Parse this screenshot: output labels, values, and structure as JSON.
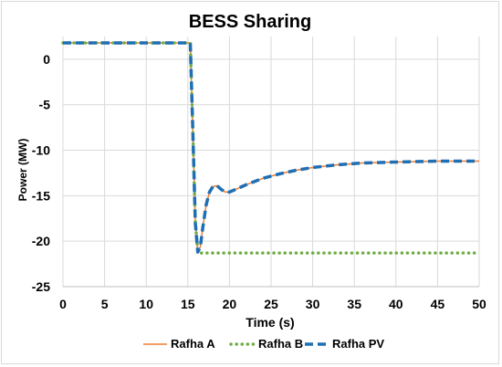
{
  "chart_data": {
    "type": "line",
    "title": "BESS Sharing",
    "xlabel": "Time (s)",
    "ylabel": "Power (MW)",
    "xlim": [
      0,
      50
    ],
    "ylim": [
      -25,
      2.5
    ],
    "xticks": [
      0,
      5,
      10,
      15,
      20,
      25,
      30,
      35,
      40,
      45,
      50
    ],
    "yticks": [
      0,
      -5,
      -10,
      -15,
      -20,
      -25
    ],
    "grid": true,
    "legend_position": "bottom",
    "series": [
      {
        "name": "Rafha A",
        "color": "#ed7d31",
        "style": "solid",
        "x": [
          0,
          15.3,
          15.6,
          15.9,
          16.2,
          16.5,
          16.8,
          17.2,
          17.6,
          18.0,
          18.5,
          19.0,
          19.5,
          20.0,
          21,
          22,
          24,
          26,
          28,
          30,
          33,
          36,
          40,
          45,
          50
        ],
        "y": [
          1.8,
          1.8,
          -8,
          -18,
          -21.2,
          -20.6,
          -18.5,
          -16.0,
          -14.6,
          -14.0,
          -13.9,
          -14.3,
          -14.6,
          -14.6,
          -14.2,
          -13.8,
          -13.1,
          -12.6,
          -12.2,
          -11.9,
          -11.6,
          -11.4,
          -11.3,
          -11.2,
          -11.2
        ]
      },
      {
        "name": "Rafha B",
        "color": "#70ad47",
        "style": "dotted",
        "x": [
          0,
          15.3,
          15.6,
          15.9,
          16.2,
          16.5,
          17,
          20,
          25,
          30,
          35,
          40,
          45,
          50
        ],
        "y": [
          1.8,
          1.8,
          -8,
          -18,
          -21.0,
          -21.3,
          -21.3,
          -21.3,
          -21.3,
          -21.3,
          -21.3,
          -21.3,
          -21.3,
          -21.3
        ]
      },
      {
        "name": "Rafha PV",
        "color": "#1f6fb5",
        "style": "dashed",
        "x": [
          0,
          15.3,
          15.6,
          15.9,
          16.2,
          16.5,
          16.8,
          17.2,
          17.6,
          18.0,
          18.5,
          19.0,
          19.5,
          20.0,
          21,
          22,
          24,
          26,
          28,
          30,
          33,
          36,
          40,
          45,
          50
        ],
        "y": [
          1.8,
          1.8,
          -8,
          -18,
          -21.2,
          -20.6,
          -18.5,
          -16.0,
          -14.6,
          -14.0,
          -13.9,
          -14.3,
          -14.6,
          -14.6,
          -14.2,
          -13.8,
          -13.1,
          -12.6,
          -12.2,
          -11.9,
          -11.6,
          -11.4,
          -11.3,
          -11.2,
          -11.2
        ]
      }
    ]
  }
}
